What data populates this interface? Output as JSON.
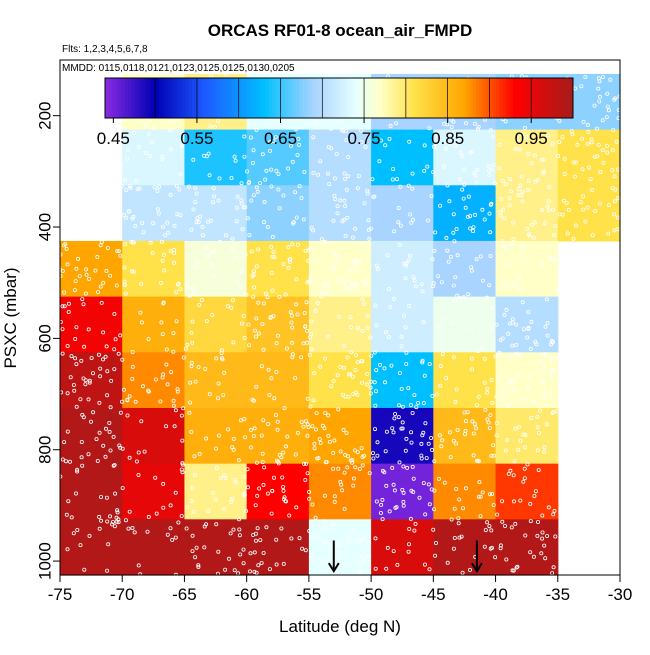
{
  "chart_data": {
    "type": "heatmap",
    "title": "ORCAS RF01-8 ocean_air_FMPD",
    "subtitle_flights": "Flts: 1,2,3,4,5,6,7,8",
    "subtitle_dates": "MMDD: 0115,0118,0121,0123,0125,0125,0130,0205",
    "xlabel": "Latitude (deg N)",
    "ylabel": "PSXC (mbar)",
    "xlim": [
      -75,
      -30
    ],
    "ylim": [
      1025,
      100
    ],
    "xticks": [
      -75,
      -70,
      -65,
      -60,
      -55,
      -50,
      -45,
      -40,
      -35,
      -30
    ],
    "xtick_labels": [
      "-75",
      "-70",
      "-65",
      "-60",
      "-55",
      "-50",
      "-45",
      "-40",
      "-35",
      "-30"
    ],
    "yticks": [
      200,
      400,
      600,
      800,
      1000
    ],
    "ytick_labels": [
      "200",
      "400",
      "600",
      "800",
      "1000"
    ],
    "colorbar": {
      "range": [
        0.44,
        1.0
      ],
      "ticks": [
        0.45,
        0.55,
        0.65,
        0.75,
        0.85,
        0.95
      ],
      "tick_labels": [
        "0.45",
        "0.55",
        "0.65",
        "0.75",
        "0.85",
        "0.95"
      ],
      "stops": [
        {
          "v": 0.44,
          "c": "#8a2be2"
        },
        {
          "v": 0.5,
          "c": "#0000b4"
        },
        {
          "v": 0.56,
          "c": "#1e5aff"
        },
        {
          "v": 0.63,
          "c": "#00bfff"
        },
        {
          "v": 0.69,
          "c": "#a9d4ff"
        },
        {
          "v": 0.74,
          "c": "#e6ffff"
        },
        {
          "v": 0.77,
          "c": "#ffffc8"
        },
        {
          "v": 0.81,
          "c": "#ffe14a"
        },
        {
          "v": 0.87,
          "c": "#ffa500"
        },
        {
          "v": 0.93,
          "c": "#ff0000"
        },
        {
          "v": 1.0,
          "c": "#a61c1c"
        }
      ]
    },
    "bin_edges_x": [
      -75,
      -70,
      -65,
      -60,
      -55,
      -50,
      -45,
      -40,
      -35,
      -30
    ],
    "bin_edges_y": [
      125,
      225,
      325,
      425,
      525,
      625,
      725,
      825,
      925,
      1025
    ],
    "grid_values": [
      [
        null,
        0.77,
        0.79,
        0.74,
        0.74,
        0.69,
        0.69,
        0.68,
        0.68
      ],
      [
        null,
        0.73,
        0.64,
        0.66,
        0.7,
        0.63,
        0.73,
        0.79,
        0.81
      ],
      [
        null,
        0.71,
        0.71,
        0.68,
        0.7,
        0.69,
        0.62,
        0.79,
        0.81
      ],
      [
        0.87,
        0.81,
        0.76,
        0.81,
        0.77,
        0.72,
        0.69,
        0.77,
        null
      ],
      [
        0.94,
        0.86,
        0.82,
        0.84,
        0.79,
        0.72,
        0.75,
        0.7,
        null
      ],
      [
        0.98,
        0.88,
        0.85,
        0.85,
        0.81,
        0.63,
        0.81,
        0.77,
        null
      ],
      [
        0.99,
        0.96,
        0.86,
        0.86,
        0.87,
        0.49,
        0.85,
        0.8,
        null
      ],
      [
        0.99,
        0.95,
        0.79,
        0.93,
        0.88,
        0.45,
        0.88,
        0.91,
        null
      ],
      [
        0.99,
        0.99,
        0.99,
        0.99,
        0.74,
        0.96,
        0.99,
        0.99,
        null
      ]
    ],
    "wind_arrows": [
      {
        "lat": -53,
        "direction": "down"
      },
      {
        "lat": -41.5,
        "direction": "down"
      }
    ]
  }
}
